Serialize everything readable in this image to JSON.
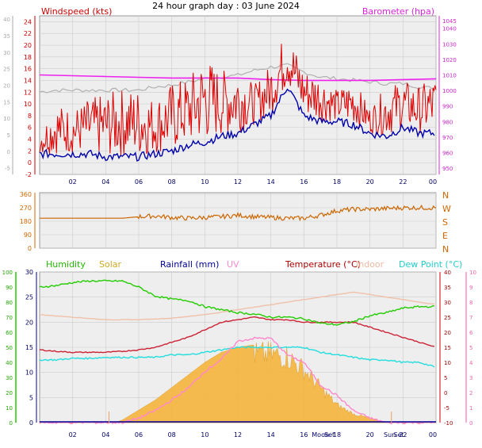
{
  "page_title": "24 hour graph day : 03 June 2024",
  "colors": {
    "wind": "#dd0000",
    "gust": "#0000aa",
    "baro": "#ee22ee",
    "grey": "#b0b0b0",
    "direction": "#cc6600",
    "humidity": "#22cc00",
    "solar": "#f4b43c",
    "rain": "#000099",
    "uv": "#ff88cc",
    "temperature": "#cc0000",
    "indoor": "#f0c0a8",
    "dewpoint": "#22dddd",
    "plot_bg": "#eeeeee",
    "grid": "#cccccc"
  },
  "hour_ticks": [
    "02",
    "04",
    "06",
    "08",
    "10",
    "12",
    "14",
    "16",
    "18",
    "20",
    "22",
    "00"
  ],
  "chart_data": [
    {
      "type": "line",
      "id": "wind_baro",
      "title_left": "Windspeed (kts)",
      "title_right": "Barometer (hpa)",
      "xlim": [
        0,
        24
      ],
      "y_left_ticks": [
        "24",
        "22",
        "20",
        "18",
        "16",
        "14",
        "12",
        "10",
        "8",
        "6",
        "4",
        "2",
        "0",
        "-2"
      ],
      "y_left_lim": [
        -2,
        25
      ],
      "y_far_left_ticks": [
        "40",
        "35",
        "30",
        "25",
        "20",
        "15",
        "10",
        "5",
        "0",
        "-5"
      ],
      "y_right_ticks": [
        "1045",
        "1040",
        "1030",
        "1020",
        "1010",
        "1000",
        "990",
        "980",
        "970",
        "960",
        "950"
      ],
      "y_right_lim": [
        946,
        1048
      ],
      "grid": true,
      "series": [
        {
          "key": "windspeed",
          "x": [
            0,
            1,
            2,
            3,
            4,
            5,
            6,
            7,
            8,
            9,
            10,
            11,
            12,
            13,
            14,
            15,
            16,
            17,
            18,
            19,
            20,
            21,
            22,
            23,
            24
          ],
          "y": [
            1.5,
            1.5,
            1.5,
            1.5,
            1,
            1,
            1,
            1.5,
            2,
            3,
            3.5,
            4.5,
            5,
            6.5,
            8,
            13,
            8,
            7,
            7,
            6.5,
            5,
            4.5,
            6,
            5,
            5
          ]
        },
        {
          "key": "gust",
          "x": [
            0,
            1,
            2,
            3,
            4,
            5,
            6,
            7,
            8,
            9,
            10,
            11,
            12,
            13,
            14,
            15,
            16,
            17,
            18,
            19,
            20,
            21,
            22,
            23,
            24
          ],
          "y": [
            6,
            11,
            10,
            12,
            13,
            14,
            14,
            12,
            15,
            16,
            20,
            17,
            18,
            14,
            18,
            24,
            17,
            16,
            13,
            15,
            10,
            14,
            15,
            14,
            16
          ]
        },
        {
          "key": "grey_far_left",
          "x": [
            0,
            1,
            2,
            3,
            4,
            5,
            6,
            7,
            8,
            9,
            10,
            11,
            12,
            13,
            14,
            15,
            16,
            17,
            18,
            19,
            20,
            21,
            22,
            23,
            24
          ],
          "y": [
            18,
            18.5,
            18.5,
            18.5,
            18.5,
            18.5,
            18.5,
            19.5,
            20,
            21,
            22,
            22.5,
            23,
            24.5,
            25.5,
            26,
            24,
            22.5,
            22,
            21.5,
            21,
            20.5,
            20.5,
            19.5,
            19
          ]
        },
        {
          "key": "barometer",
          "x": [
            0,
            2,
            4,
            6,
            8,
            10,
            12,
            14,
            16,
            18,
            20,
            22,
            24
          ],
          "y": [
            1010,
            1009.5,
            1009,
            1008.5,
            1008,
            1008,
            1008,
            1007,
            1006.5,
            1006.5,
            1006.5,
            1007,
            1007.5
          ]
        }
      ]
    },
    {
      "type": "scatter",
      "id": "direction",
      "xlim": [
        0,
        24
      ],
      "y_left_ticks": [
        "360",
        "270",
        "180",
        "90",
        "0"
      ],
      "y_left_lim": [
        0,
        360
      ],
      "y_right_ticks": [
        "N",
        "W",
        "S",
        "E",
        "N"
      ],
      "grid": true,
      "series": [
        {
          "key": "wind_direction",
          "x": [
            0,
            1,
            2,
            3,
            4,
            5,
            6,
            7,
            8,
            9,
            10,
            11,
            12,
            13,
            14,
            15,
            16,
            17,
            18,
            19,
            20,
            21,
            22,
            23,
            24
          ],
          "y": [
            200,
            200,
            200,
            200,
            200,
            200,
            210,
            215,
            205,
            200,
            205,
            210,
            220,
            210,
            205,
            200,
            200,
            220,
            250,
            260,
            260,
            265,
            270,
            270,
            270
          ]
        }
      ]
    },
    {
      "type": "line",
      "id": "multi",
      "xlim": [
        0,
        24
      ],
      "legend": [
        "Humidity",
        "Solar",
        "Rainfall (mm)",
        "UV",
        "Temperature (°C)",
        "Indoor",
        "Dew Point (°C)"
      ],
      "y_humidity_ticks": [
        "100",
        "90",
        "80",
        "70",
        "60",
        "50",
        "40",
        "30",
        "20",
        "10",
        "0"
      ],
      "y_humidity_lim": [
        0,
        100
      ],
      "y_solar_ticks": [
        "30",
        "25",
        "20",
        "15",
        "10",
        "5",
        "0"
      ],
      "y_solar_lim": [
        0,
        30
      ],
      "y_temp_ticks": [
        "40",
        "35",
        "30",
        "25",
        "20",
        "15",
        "10",
        "5",
        "0",
        "-5",
        "-10"
      ],
      "y_temp_lim": [
        -10,
        40
      ],
      "y_uv_ticks": [
        "10",
        "9",
        "8",
        "7",
        "6",
        "5",
        "4",
        "3",
        "2",
        "1",
        "0"
      ],
      "y_uv_lim": [
        0,
        10
      ],
      "markers": [
        "Moon",
        "Set",
        "Sun",
        "Set"
      ],
      "grid": true,
      "series": [
        {
          "key": "humidity",
          "x": [
            0,
            1,
            2,
            3,
            4,
            5,
            6,
            7,
            8,
            9,
            10,
            11,
            12,
            13,
            14,
            15,
            16,
            17,
            18,
            19,
            20,
            21,
            22,
            23,
            24
          ],
          "y": [
            90,
            91,
            93,
            94,
            94,
            94,
            90,
            84,
            82,
            81,
            77,
            75,
            73,
            72,
            70,
            70,
            69,
            66,
            65,
            67,
            71,
            73,
            76,
            77,
            77
          ]
        },
        {
          "key": "temperature",
          "x": [
            0,
            1,
            2,
            3,
            4,
            5,
            6,
            7,
            8,
            9,
            10,
            11,
            12,
            13,
            14,
            15,
            16,
            17,
            18,
            19,
            20,
            21,
            22,
            23,
            24
          ],
          "y": [
            14.5,
            14.2,
            14,
            14,
            14,
            14.2,
            14.5,
            15,
            16,
            17,
            18.5,
            20,
            20.5,
            21,
            20.5,
            20.5,
            20,
            20,
            20,
            20,
            19,
            18,
            17,
            16,
            15
          ]
        },
        {
          "key": "indoor",
          "x": [
            0,
            2,
            4,
            6,
            8,
            10,
            12,
            14,
            16,
            18,
            19,
            20,
            22,
            24
          ],
          "y": [
            21.5,
            21,
            20.5,
            20.5,
            20.8,
            21.5,
            22.5,
            23.5,
            24.5,
            25.5,
            26,
            25.5,
            24.5,
            23.5
          ]
        },
        {
          "key": "dewpoint",
          "x": [
            0,
            1,
            2,
            3,
            4,
            5,
            6,
            7,
            8,
            9,
            10,
            11,
            12,
            13,
            14,
            15,
            16,
            17,
            18,
            19,
            20,
            21,
            22,
            23,
            24
          ],
          "y": [
            12.5,
            12.5,
            12.8,
            12.8,
            13,
            13,
            13,
            13,
            13.5,
            13.5,
            14,
            14.5,
            15,
            15,
            15,
            15,
            15,
            14,
            13.5,
            13,
            12.5,
            12.5,
            12,
            12,
            11
          ]
        },
        {
          "key": "solar",
          "x": [
            0,
            4.5,
            5,
            6,
            7,
            8,
            9,
            10,
            11,
            12,
            13,
            14,
            15,
            16,
            17,
            18,
            19,
            20,
            20.5,
            21,
            24
          ],
          "y": [
            0,
            0,
            0.5,
            2.5,
            4.5,
            7,
            9.5,
            12,
            14,
            15,
            15.5,
            15.5,
            15,
            12,
            8,
            4,
            2,
            1,
            0.5,
            0,
            0
          ]
        },
        {
          "key": "uv",
          "x": [
            0,
            5,
            6,
            7,
            8,
            9,
            10,
            11,
            12,
            13,
            14,
            15,
            16,
            17,
            18,
            19,
            20,
            21,
            24
          ],
          "y": [
            0,
            0,
            0.3,
            0.8,
            1.5,
            2.3,
            3.4,
            4.2,
            5.4,
            5.6,
            5.6,
            4.5,
            4,
            2.5,
            1.8,
            0.8,
            0.3,
            0,
            0
          ]
        }
      ]
    }
  ]
}
